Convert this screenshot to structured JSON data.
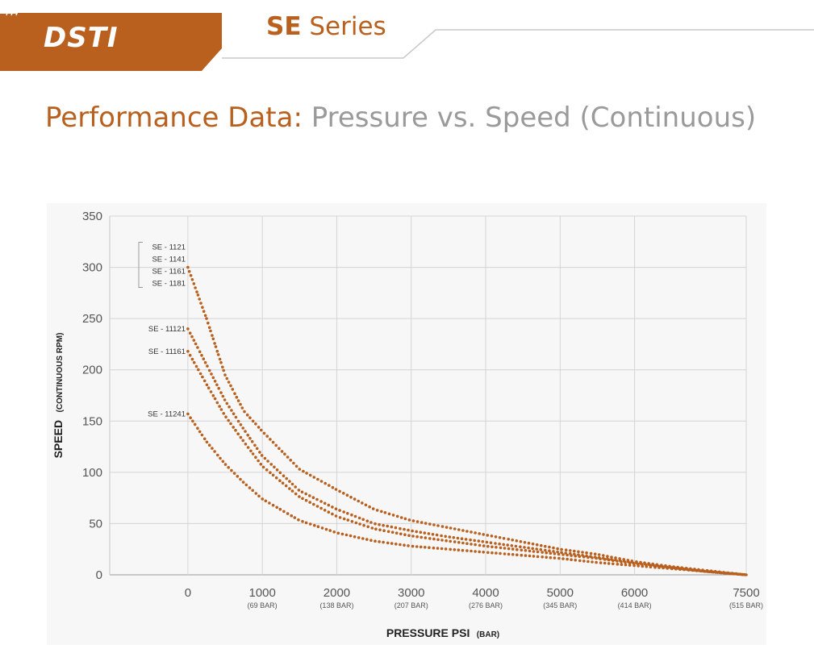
{
  "header": {
    "brand": "DSTI",
    "series_bold": "SE",
    "series_rest": " Series",
    "brand_color": "#b9601f"
  },
  "page": {
    "title_accent": "Performance Data:",
    "title_rest": " Pressure vs. Speed (Continuous)"
  },
  "chart_data": {
    "type": "scatter",
    "title": "",
    "xlabel_main": "PRESSURE PSI",
    "xlabel_sub": "(BAR)",
    "ylabel_main": "SPEED",
    "ylabel_sub": "(CONTINUOUS RPM)",
    "xlim": [
      -1050,
      7500
    ],
    "ylim": [
      0,
      350
    ],
    "xticks": [
      {
        "value": 0,
        "label": "0",
        "sublabel": ""
      },
      {
        "value": 1000,
        "label": "1000",
        "sublabel": "(69 BAR)"
      },
      {
        "value": 2000,
        "label": "2000",
        "sublabel": "(138 BAR)"
      },
      {
        "value": 3000,
        "label": "3000",
        "sublabel": "(207 BAR)"
      },
      {
        "value": 4000,
        "label": "4000",
        "sublabel": "(276 BAR)"
      },
      {
        "value": 5000,
        "label": "5000",
        "sublabel": "(345 BAR)"
      },
      {
        "value": 6000,
        "label": "6000",
        "sublabel": "(414 BAR)"
      },
      {
        "value": 7500,
        "label": "7500",
        "sublabel": "(515 BAR)"
      }
    ],
    "yticks": [
      0,
      50,
      100,
      150,
      200,
      250,
      300,
      350
    ],
    "grid": true,
    "marker_color": "#b9601f",
    "series": [
      {
        "labels": [
          "SE - 1121",
          "SE - 1141",
          "SE - 1161",
          "SE - 1181"
        ],
        "points": [
          [
            0,
            300
          ],
          [
            250,
            250
          ],
          [
            500,
            195
          ],
          [
            750,
            160
          ],
          [
            1000,
            140
          ],
          [
            1500,
            103
          ],
          [
            2000,
            83
          ],
          [
            2500,
            64
          ],
          [
            3000,
            53
          ],
          [
            3500,
            46
          ],
          [
            4000,
            39
          ],
          [
            4500,
            32
          ],
          [
            5000,
            25
          ],
          [
            5500,
            20
          ],
          [
            6000,
            13
          ],
          [
            6500,
            8
          ],
          [
            7000,
            4
          ],
          [
            7500,
            0
          ]
        ]
      },
      {
        "labels": [
          "SE - 11121"
        ],
        "points": [
          [
            0,
            240
          ],
          [
            250,
            205
          ],
          [
            500,
            170
          ],
          [
            750,
            142
          ],
          [
            1000,
            116
          ],
          [
            1500,
            82
          ],
          [
            2000,
            64
          ],
          [
            2500,
            50
          ],
          [
            3000,
            43
          ],
          [
            3500,
            37
          ],
          [
            4000,
            32
          ],
          [
            4500,
            27
          ],
          [
            5000,
            22
          ],
          [
            5500,
            17
          ],
          [
            6000,
            12
          ],
          [
            6500,
            7
          ],
          [
            7000,
            3
          ],
          [
            7500,
            0
          ]
        ]
      },
      {
        "labels": [
          "SE - 11161"
        ],
        "points": [
          [
            0,
            218
          ],
          [
            250,
            186
          ],
          [
            500,
            155
          ],
          [
            750,
            130
          ],
          [
            1000,
            106
          ],
          [
            1500,
            76
          ],
          [
            2000,
            57
          ],
          [
            2500,
            45
          ],
          [
            3000,
            38
          ],
          [
            3500,
            33
          ],
          [
            4000,
            28
          ],
          [
            4500,
            24
          ],
          [
            5000,
            20
          ],
          [
            5500,
            16
          ],
          [
            6000,
            11
          ],
          [
            6500,
            7
          ],
          [
            7000,
            3
          ],
          [
            7500,
            0
          ]
        ]
      },
      {
        "labels": [
          "SE - 11241"
        ],
        "points": [
          [
            0,
            157
          ],
          [
            250,
            130
          ],
          [
            500,
            108
          ],
          [
            750,
            90
          ],
          [
            1000,
            74
          ],
          [
            1500,
            53
          ],
          [
            2000,
            41
          ],
          [
            2500,
            33
          ],
          [
            3000,
            28
          ],
          [
            3500,
            25
          ],
          [
            4000,
            22
          ],
          [
            4500,
            19
          ],
          [
            5000,
            16
          ],
          [
            5500,
            12
          ],
          [
            6000,
            9
          ],
          [
            6500,
            6
          ],
          [
            7000,
            3
          ],
          [
            7500,
            0
          ]
        ]
      }
    ]
  }
}
